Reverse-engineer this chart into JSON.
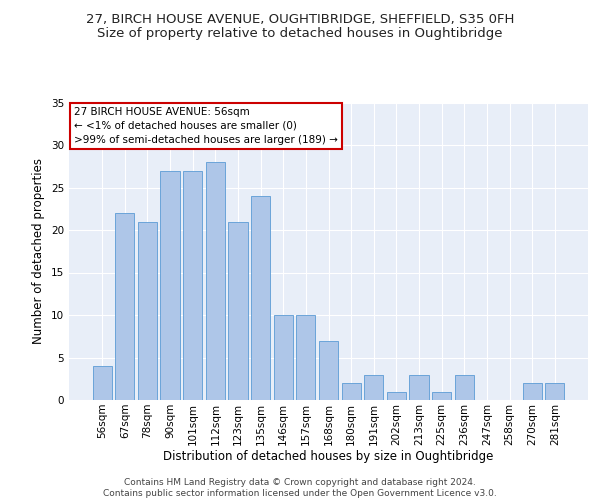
{
  "title1": "27, BIRCH HOUSE AVENUE, OUGHTIBRIDGE, SHEFFIELD, S35 0FH",
  "title2": "Size of property relative to detached houses in Oughtibridge",
  "xlabel": "Distribution of detached houses by size in Oughtibridge",
  "ylabel": "Number of detached properties",
  "categories": [
    "56sqm",
    "67sqm",
    "78sqm",
    "90sqm",
    "101sqm",
    "112sqm",
    "123sqm",
    "135sqm",
    "146sqm",
    "157sqm",
    "168sqm",
    "180sqm",
    "191sqm",
    "202sqm",
    "213sqm",
    "225sqm",
    "236sqm",
    "247sqm",
    "258sqm",
    "270sqm",
    "281sqm"
  ],
  "values": [
    4,
    22,
    21,
    27,
    27,
    28,
    21,
    24,
    10,
    10,
    7,
    2,
    3,
    1,
    3,
    1,
    3,
    0,
    0,
    2,
    2
  ],
  "bar_color": "#aec6e8",
  "bar_edge_color": "#5b9bd5",
  "annotation_title": "27 BIRCH HOUSE AVENUE: 56sqm",
  "annotation_line1": "← <1% of detached houses are smaller (0)",
  "annotation_line2": ">99% of semi-detached houses are larger (189) →",
  "annotation_box_color": "#ffffff",
  "annotation_box_edge_color": "#cc0000",
  "ylim": [
    0,
    35
  ],
  "yticks": [
    0,
    5,
    10,
    15,
    20,
    25,
    30,
    35
  ],
  "footer1": "Contains HM Land Registry data © Crown copyright and database right 2024.",
  "footer2": "Contains public sector information licensed under the Open Government Licence v3.0.",
  "bg_color": "#e8eef8",
  "grid_color": "#ffffff",
  "title1_fontsize": 9.5,
  "title2_fontsize": 9.5,
  "axis_label_fontsize": 8.5,
  "tick_fontsize": 7.5,
  "annotation_fontsize": 7.5,
  "footer_fontsize": 6.5
}
